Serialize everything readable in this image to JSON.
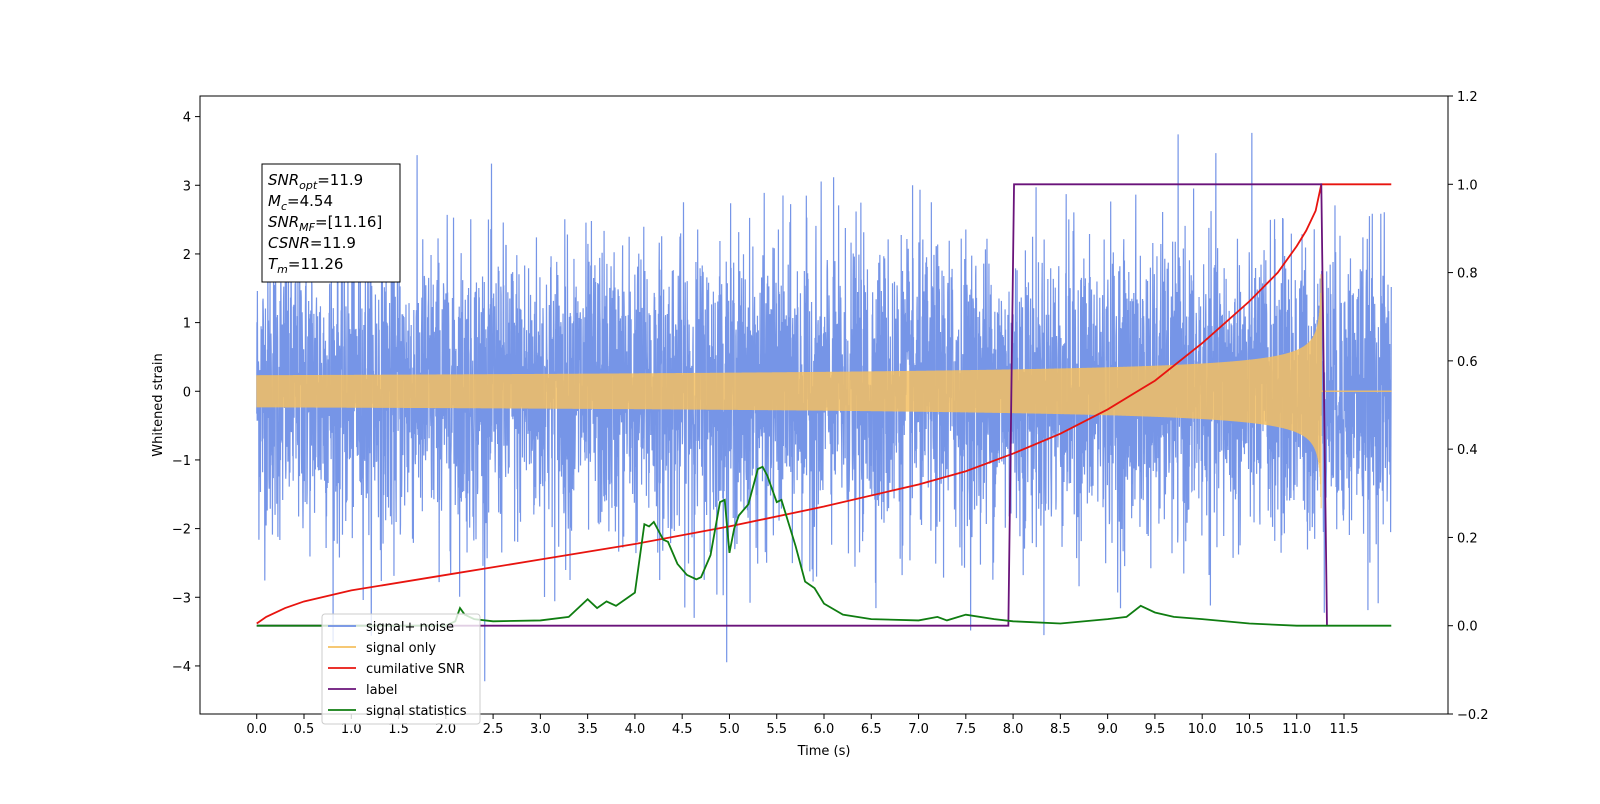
{
  "chart_data": {
    "type": "line",
    "title": "",
    "xlabel": "Time (s)",
    "ylabel": "Whitened strain",
    "y2label": "",
    "xlim": [
      -0.6,
      12.6
    ],
    "ylim": [
      -4.7,
      4.3
    ],
    "y2lim": [
      -0.2,
      1.2
    ],
    "x_ticks": [
      0.0,
      0.5,
      1.0,
      1.5,
      2.0,
      2.5,
      3.0,
      3.5,
      4.0,
      4.5,
      5.0,
      5.5,
      6.0,
      6.5,
      7.0,
      7.5,
      8.0,
      8.5,
      9.0,
      9.5,
      10.0,
      10.5,
      11.0,
      11.5
    ],
    "x_tick_labels": [
      "0.0",
      "0.5",
      "1.0",
      "1.5",
      "2.0",
      "2.5",
      "3.0",
      "3.5",
      "4.0",
      "4.5",
      "5.0",
      "5.5",
      "6.0",
      "6.5",
      "7.0",
      "7.5",
      "8.0",
      "8.5",
      "9.0",
      "9.5",
      "10.0",
      "10.5",
      "11.0",
      "11.5"
    ],
    "y_ticks": [
      -4,
      -3,
      -2,
      -1,
      0,
      1,
      2,
      3,
      4
    ],
    "y_tick_labels": [
      "−4",
      "−3",
      "−2",
      "−1",
      "0",
      "1",
      "2",
      "3",
      "4"
    ],
    "y2_ticks": [
      -0.2,
      0.0,
      0.2,
      0.4,
      0.6,
      0.8,
      1.0,
      1.2
    ],
    "y2_tick_labels": [
      "−0.2",
      "0.0",
      "0.2",
      "0.4",
      "0.6",
      "0.8",
      "1.0",
      "1.2"
    ],
    "grid": false,
    "legend_placement": "lower-left",
    "info_box": {
      "lines": [
        {
          "name": "SNR",
          "sub": "opt",
          "value": "=11.9"
        },
        {
          "name": "M",
          "sub": "c",
          "value": "=4.54"
        },
        {
          "name": "SNR",
          "sub": "MF",
          "value": "=[11.16]"
        },
        {
          "name": "CSNR",
          "sub": "",
          "value": "=11.9"
        },
        {
          "name": "T",
          "sub": "m",
          "value": "=11.26"
        }
      ]
    },
    "series": [
      {
        "name": "signal+ noise",
        "axis": "left",
        "color": "#6f8fe6",
        "kind": "noise",
        "t_start": 0.0,
        "t_end": 12.0,
        "sigma": 1.05,
        "min": -4.25,
        "max": 3.88
      },
      {
        "name": "signal only",
        "axis": "left",
        "color": "#f5c061",
        "kind": "chirp",
        "t_start": 0.0,
        "t_merge": 11.26,
        "t_end": 12.0,
        "amp_start": 0.07,
        "amp_at_8s": 0.17,
        "amp_at_11s": 0.6,
        "amp_peak": 3.0
      },
      {
        "name": "cumilative SNR",
        "axis": "right",
        "color": "#e8140f",
        "x": [
          0.0,
          0.1,
          0.3,
          0.5,
          1.0,
          2.0,
          3.0,
          4.0,
          5.0,
          6.0,
          7.0,
          7.5,
          8.0,
          8.5,
          9.0,
          9.5,
          10.0,
          10.5,
          10.8,
          11.0,
          11.1,
          11.2,
          11.26,
          12.0
        ],
        "y": [
          0.005,
          0.02,
          0.04,
          0.055,
          0.08,
          0.115,
          0.15,
          0.185,
          0.225,
          0.27,
          0.32,
          0.35,
          0.39,
          0.435,
          0.49,
          0.555,
          0.64,
          0.735,
          0.8,
          0.86,
          0.895,
          0.94,
          1.0,
          1.0
        ]
      },
      {
        "name": "label",
        "axis": "right",
        "color": "#6a137a",
        "x": [
          0.0,
          7.95,
          8.01,
          11.26,
          11.32
        ],
        "y": [
          0.0,
          0.0,
          1.0,
          1.0,
          0.0
        ]
      },
      {
        "name": "signal statistics",
        "axis": "right",
        "color": "#0f7d11",
        "x": [
          0.0,
          2.0,
          2.1,
          2.15,
          2.2,
          2.3,
          2.5,
          3.0,
          3.3,
          3.5,
          3.6,
          3.7,
          3.8,
          3.9,
          4.0,
          4.1,
          4.15,
          4.2,
          4.3,
          4.35,
          4.45,
          4.55,
          4.65,
          4.7,
          4.8,
          4.9,
          4.95,
          5.0,
          5.05,
          5.1,
          5.2,
          5.3,
          5.35,
          5.4,
          5.5,
          5.55,
          5.6,
          5.7,
          5.8,
          5.9,
          6.0,
          6.2,
          6.5,
          7.0,
          7.2,
          7.3,
          7.5,
          7.8,
          8.0,
          8.5,
          9.0,
          9.2,
          9.35,
          9.5,
          9.7,
          10.0,
          10.5,
          11.0,
          12.0
        ],
        "y": [
          0.0,
          0.0,
          0.01,
          0.04,
          0.025,
          0.015,
          0.01,
          0.012,
          0.02,
          0.06,
          0.04,
          0.055,
          0.045,
          0.06,
          0.075,
          0.23,
          0.225,
          0.235,
          0.195,
          0.19,
          0.14,
          0.115,
          0.105,
          0.11,
          0.16,
          0.28,
          0.285,
          0.165,
          0.22,
          0.25,
          0.275,
          0.355,
          0.36,
          0.34,
          0.28,
          0.285,
          0.25,
          0.18,
          0.1,
          0.085,
          0.05,
          0.025,
          0.015,
          0.012,
          0.02,
          0.012,
          0.025,
          0.015,
          0.01,
          0.005,
          0.015,
          0.02,
          0.045,
          0.03,
          0.02,
          0.015,
          0.005,
          0.0,
          0.0
        ]
      }
    ],
    "legend": [
      {
        "label": "signal+ noise",
        "color": "#6f8fe6"
      },
      {
        "label": "signal only",
        "color": "#f5c061"
      },
      {
        "label": "cumilative SNR",
        "color": "#e8140f"
      },
      {
        "label": "label",
        "color": "#6a137a"
      },
      {
        "label": "signal statistics",
        "color": "#0f7d11"
      }
    ]
  }
}
